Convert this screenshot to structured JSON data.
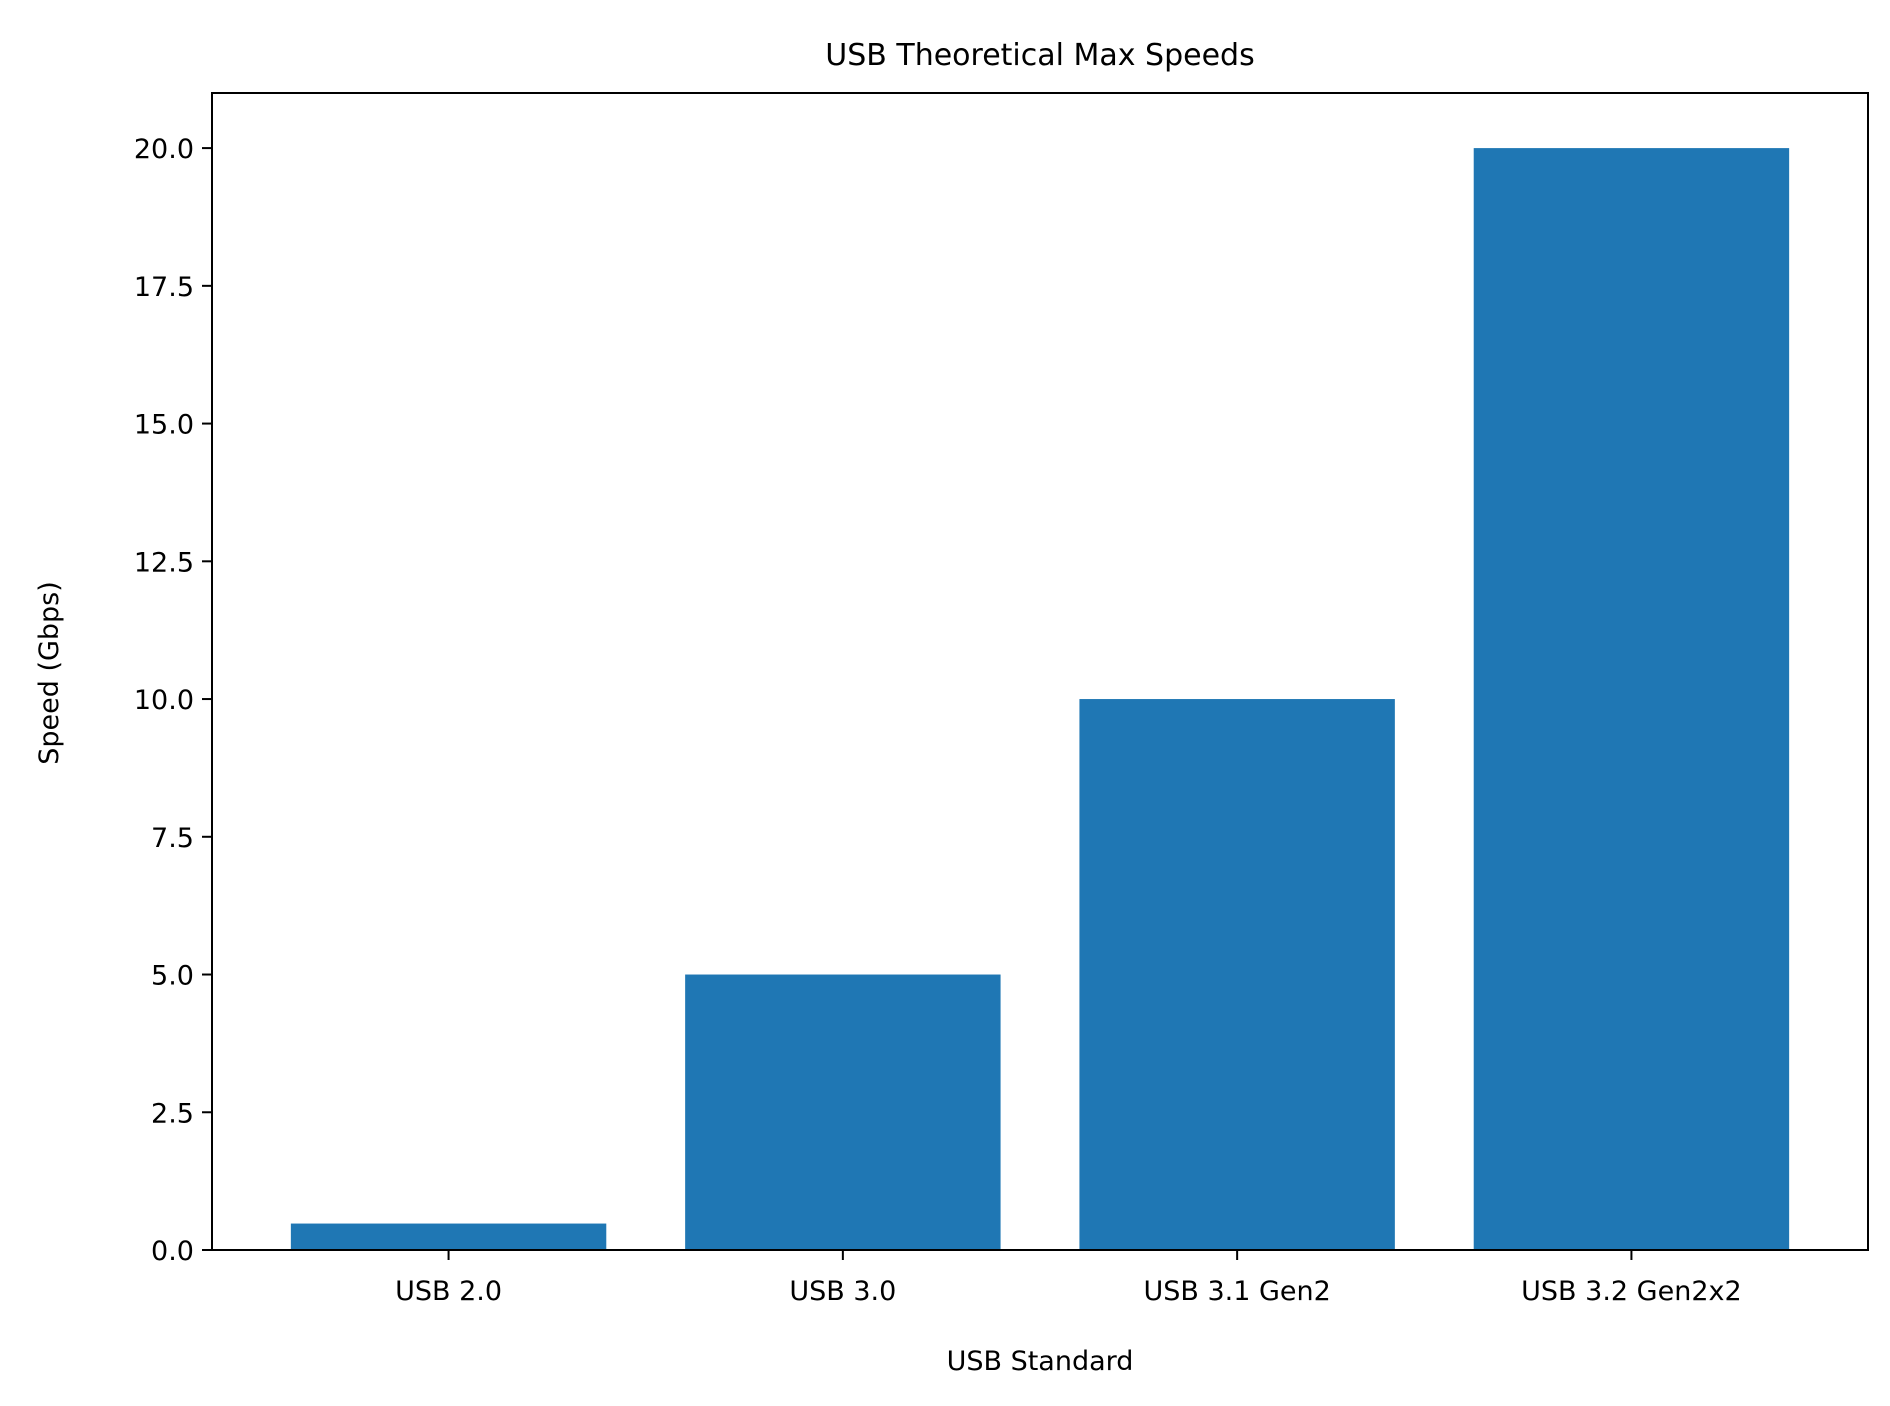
{
  "chart_data": {
    "type": "bar",
    "title": "USB Theoretical Max Speeds",
    "xlabel": "USB Standard",
    "ylabel": "Speed (Gbps)",
    "categories": [
      "USB 2.0",
      "USB 3.0",
      "USB 3.1 Gen2",
      "USB 3.2 Gen2x2"
    ],
    "values": [
      0.48,
      5,
      10,
      20
    ],
    "ylim": [
      0,
      21
    ],
    "yticks": [
      "0.0",
      "2.5",
      "5.0",
      "7.5",
      "10.0",
      "12.5",
      "15.0",
      "17.5",
      "20.0"
    ],
    "grid": false,
    "legend": "none",
    "bar_color": "#1f77b4",
    "axis_color": "#000000"
  }
}
